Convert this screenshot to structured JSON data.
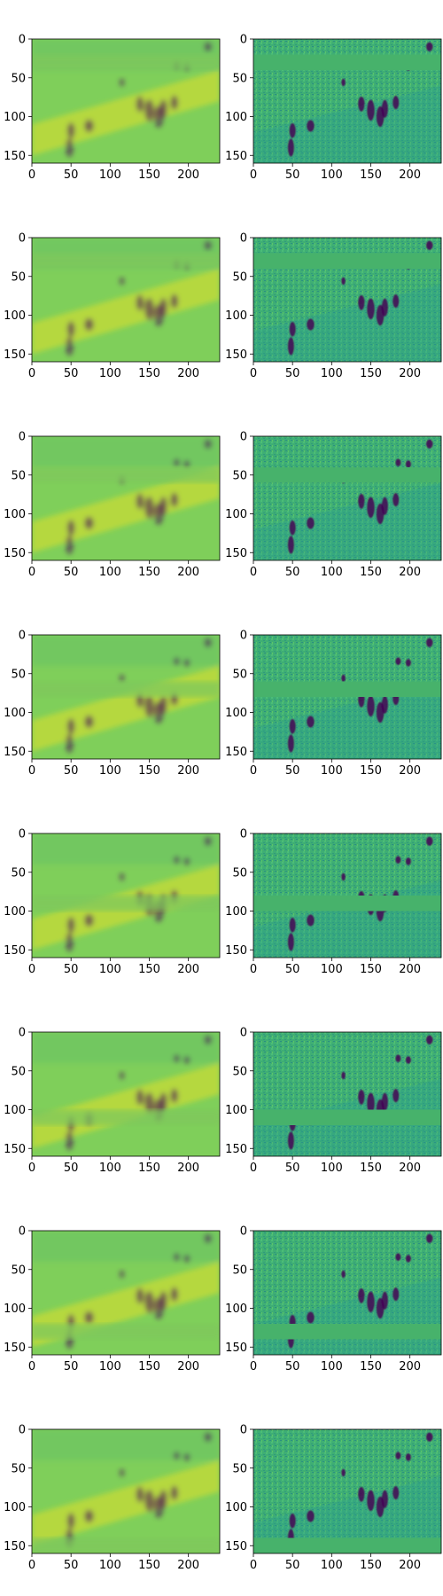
{
  "figure": {
    "type": "image-grid",
    "rows": 8,
    "cols": 2,
    "colormap": "viridis"
  },
  "chart_data": {
    "type": "heatmap",
    "x_ticks": [
      "0",
      "50",
      "100",
      "150",
      "200"
    ],
    "y_ticks": [
      "0",
      "50",
      "100",
      "150"
    ],
    "xlim": [
      0,
      240
    ],
    "ylim": [
      160,
      0
    ],
    "grid": false,
    "legend": "none",
    "occlusion_band_y": [
      [
        20,
        40
      ],
      [
        20,
        40
      ],
      [
        40,
        60
      ],
      [
        60,
        80
      ],
      [
        80,
        100
      ],
      [
        100,
        120
      ],
      [
        120,
        140
      ],
      [
        140,
        160
      ]
    ],
    "panels_per_row": [
      {
        "side": "left",
        "kind": "smooth-reconstruction"
      },
      {
        "side": "right",
        "kind": "detailed-with-band"
      }
    ]
  },
  "colors": {
    "viridis_low": "#440154",
    "viridis_mid": "#2a9d8f",
    "viridis_green": "#47b26b",
    "viridis_lightgreen": "#7fcf5a",
    "viridis_yellow": "#e1e02a",
    "figure_bg": "#ffffff",
    "axes_edge": "#000000"
  }
}
